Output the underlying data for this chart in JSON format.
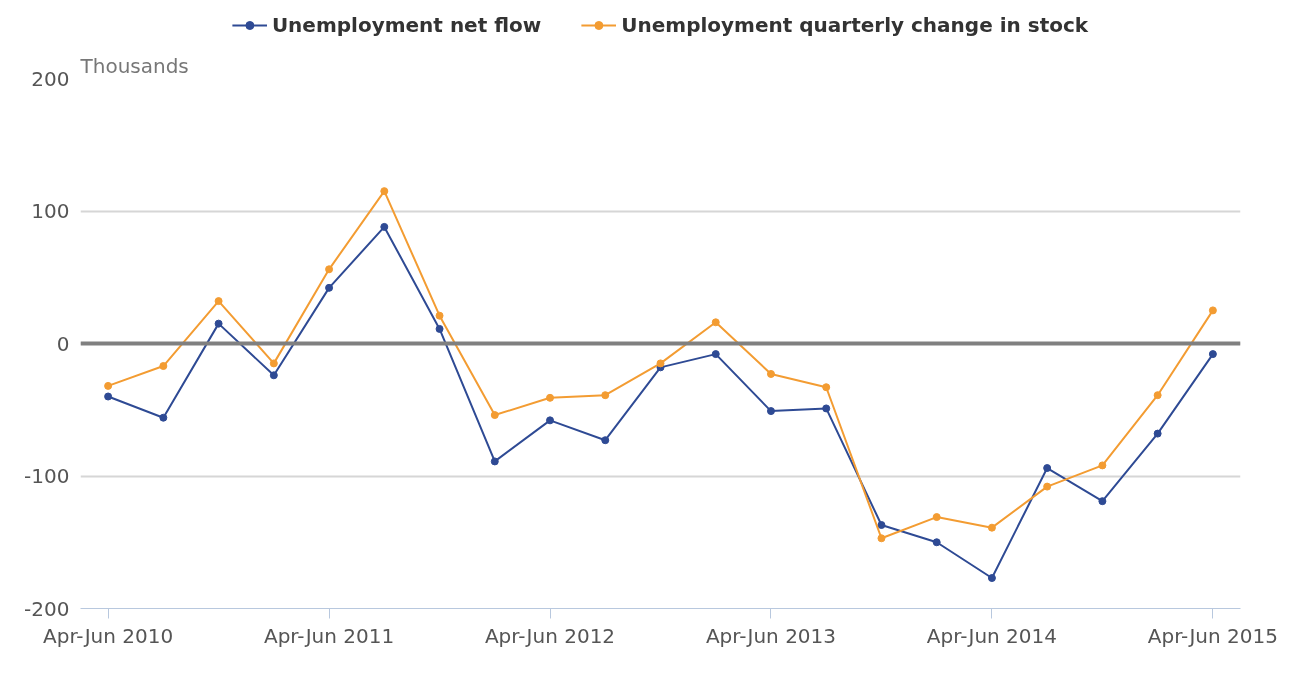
{
  "chart_data": {
    "type": "line",
    "ylabel": "Thousands",
    "categories": [
      "Apr-Jun 2010",
      null,
      null,
      null,
      "Apr-Jun 2011",
      null,
      null,
      null,
      "Apr-Jun 2012",
      null,
      null,
      null,
      "Apr-Jun 2013",
      null,
      null,
      null,
      "Apr-Jun 2014",
      null,
      null,
      null,
      "Apr-Jun 2015"
    ],
    "series": [
      {
        "name": "Unemployment net flow",
        "color": "#2e4a94",
        "values": [
          -40,
          -56,
          15,
          -24,
          42,
          88,
          11,
          -89,
          -58,
          -73,
          -18,
          -8,
          -51,
          -49,
          -137,
          -150,
          -177,
          -94,
          -119,
          -68,
          -8
        ]
      },
      {
        "name": "Unemployment quarterly change in stock",
        "color": "#f39c32",
        "values": [
          -32,
          -17,
          32,
          -15,
          56,
          115,
          21,
          -54,
          -41,
          -39,
          -15,
          16,
          -23,
          -33,
          -147,
          -131,
          -139,
          -108,
          -92,
          -39,
          25
        ]
      }
    ],
    "ylim": [
      -200,
      200
    ],
    "yticks": [
      -200,
      -100,
      0,
      100,
      200
    ],
    "ref_lines": [
      {
        "axis": "y",
        "value": 0,
        "color": "#808080"
      }
    ],
    "grid": "y",
    "legend": "top",
    "marker": "circle",
    "line_style": "solid"
  }
}
